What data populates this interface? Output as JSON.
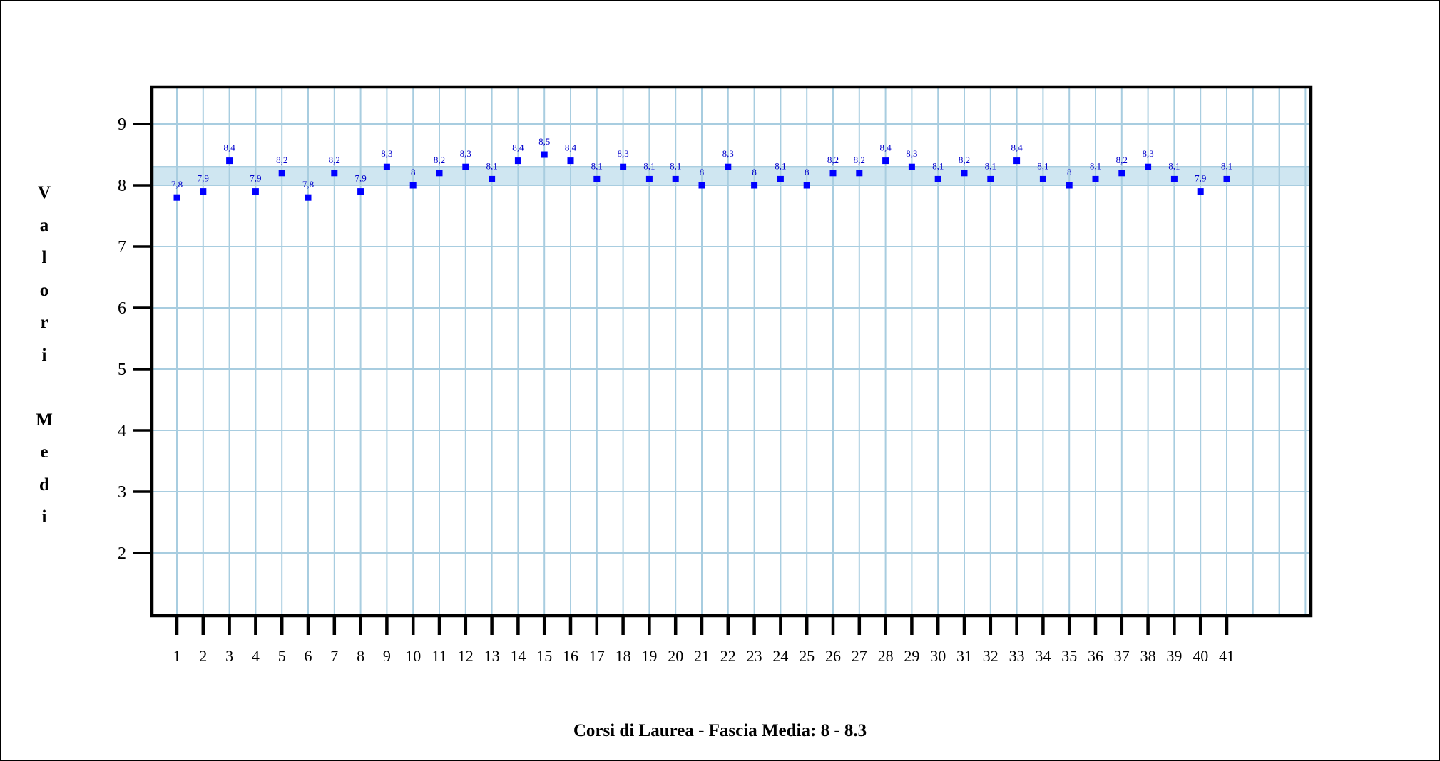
{
  "chart_data": {
    "type": "scatter",
    "title": "Corsi di Laurea - Fascia Media: 8 - 8.3",
    "ylabel": "Valori Medi",
    "xlabel": "",
    "x": [
      1,
      2,
      3,
      4,
      5,
      6,
      7,
      8,
      9,
      10,
      11,
      12,
      13,
      14,
      15,
      16,
      17,
      18,
      19,
      20,
      21,
      22,
      23,
      24,
      25,
      26,
      27,
      28,
      29,
      30,
      31,
      32,
      33,
      34,
      35,
      36,
      37,
      38,
      39,
      40,
      41
    ],
    "values": [
      7.8,
      7.9,
      8.4,
      7.9,
      8.2,
      7.8,
      8.2,
      7.9,
      8.3,
      8,
      8.2,
      8.3,
      8.1,
      8.4,
      8.5,
      8.4,
      8.1,
      8.3,
      8.1,
      8.1,
      8,
      8.3,
      8,
      8.1,
      8,
      8.2,
      8.2,
      8.4,
      8.3,
      8.1,
      8.2,
      8.1,
      8.4,
      8.1,
      8,
      8.1,
      8.2,
      8.3,
      8.1,
      7.9,
      8.1
    ],
    "point_labels": [
      "7,8",
      "7,9",
      "8,4",
      "7,9",
      "8,2",
      "7,8",
      "8,2",
      "7,9",
      "8,3",
      "8",
      "8,2",
      "8,3",
      "8,1",
      "8,4",
      "8,5",
      "8,4",
      "8,1",
      "8,3",
      "8,1",
      "8,1",
      "8",
      "8,3",
      "8",
      "8,1",
      "8",
      "8,2",
      "8,2",
      "8,4",
      "8,3",
      "8,1",
      "8,2",
      "8,1",
      "8,4",
      "8,1",
      "8",
      "8,1",
      "8,2",
      "8,3",
      "8,1",
      "7,9",
      "8,1"
    ],
    "yticks": [
      2,
      3,
      4,
      5,
      6,
      7,
      8,
      9
    ],
    "ylim": [
      1,
      9.6
    ],
    "band": [
      8,
      8.3
    ],
    "grid": true,
    "colors": {
      "marker": "#0000ff",
      "label": "#0000cc",
      "grid": "#a8cde0",
      "band": "#cfe6f1",
      "band_edge": "#8fbdd6",
      "axis": "#000000"
    }
  }
}
